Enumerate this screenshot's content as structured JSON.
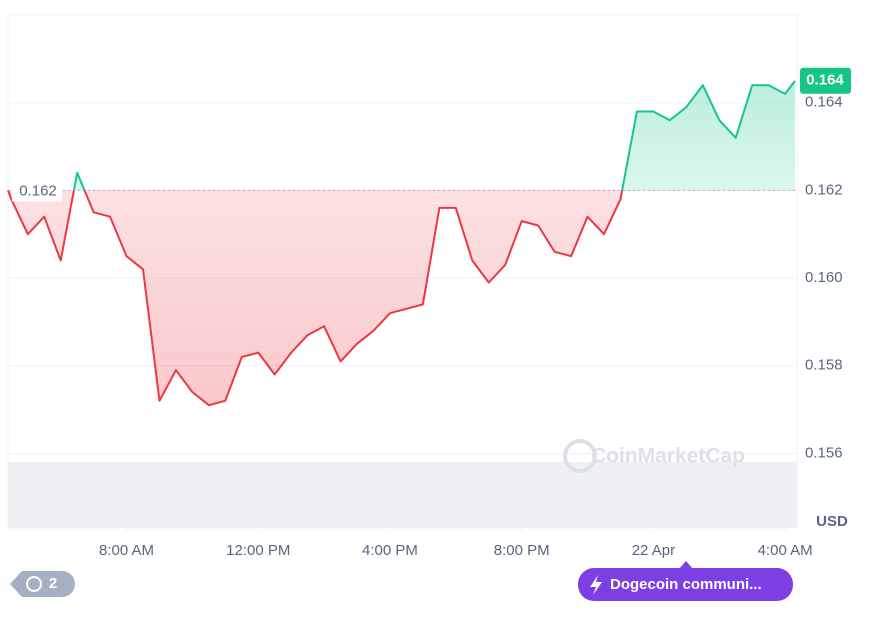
{
  "chart_data": {
    "type": "line",
    "x": [
      4.4,
      4.5,
      5.0,
      5.5,
      6.0,
      6.5,
      7.0,
      7.5,
      8.0,
      8.5,
      9.0,
      9.5,
      10.0,
      10.5,
      11.0,
      11.5,
      12.0,
      12.5,
      13.0,
      13.5,
      14.0,
      14.5,
      15.0,
      15.5,
      16.0,
      16.5,
      17.0,
      17.5,
      18.0,
      18.5,
      19.0,
      19.5,
      20.0,
      20.5,
      21.0,
      21.5,
      22.0,
      22.5,
      23.0,
      23.5,
      24.0,
      24.5,
      25.0,
      25.5,
      26.0,
      26.5,
      27.0,
      27.5,
      28.0,
      28.3
    ],
    "series": [
      {
        "name": "Price",
        "values": [
          0.162,
          0.1618,
          0.161,
          0.1614,
          0.1604,
          0.1624,
          0.1615,
          0.1614,
          0.1605,
          0.1602,
          0.1572,
          0.1579,
          0.1574,
          0.1571,
          0.1572,
          0.1582,
          0.1583,
          0.1578,
          0.1583,
          0.1587,
          0.1589,
          0.1581,
          0.1585,
          0.1588,
          0.1592,
          0.1593,
          0.1594,
          0.1616,
          0.1616,
          0.1604,
          0.1599,
          0.1603,
          0.1613,
          0.1612,
          0.1606,
          0.1605,
          0.1614,
          0.161,
          0.1618,
          0.1638,
          0.1638,
          0.1636,
          0.1639,
          0.1644,
          0.1636,
          0.1632,
          0.1644,
          0.1644,
          0.1642,
          0.1645
        ]
      }
    ],
    "up_color": "#16c784",
    "down_color": "#ea3943",
    "baseline": {
      "value": 0.162,
      "label": "0.162"
    },
    "last_price_label": "0.164",
    "xlim": [
      4.4,
      28.3
    ],
    "xticks": [
      {
        "value": 8,
        "label": "8:00 AM"
      },
      {
        "value": 12,
        "label": "12:00 PM"
      },
      {
        "value": 16,
        "label": "4:00 PM"
      },
      {
        "value": 20,
        "label": "8:00 PM"
      },
      {
        "value": 24,
        "label": "22 Apr"
      },
      {
        "value": 28,
        "label": "4:00 AM"
      }
    ],
    "ylim": [
      0.1543,
      0.166
    ],
    "yticks": [
      0.156,
      0.158,
      {
        "value": 0.16,
        "label": "0.160"
      },
      0.162,
      0.164
    ],
    "grid": true,
    "currency_label": "USD"
  },
  "watermark": "CoinMarketCap",
  "history_count": "2",
  "news_button": "Dogecoin communi..."
}
